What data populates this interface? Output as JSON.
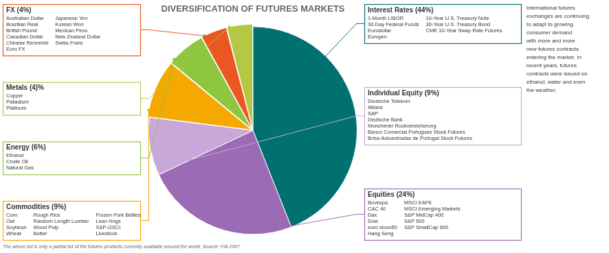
{
  "chart_data": {
    "type": "pie",
    "title": "DIVERSIFICATION OF FUTURES MARKETS",
    "values": [
      44,
      24,
      9,
      9,
      6,
      4,
      4
    ],
    "colors": [
      "#007070",
      "#9B6BB5",
      "#C8A8D8",
      "#F5A800",
      "#8DC63F",
      "#E85820",
      "#B5C845"
    ],
    "annotations": [
      {
        "text": "FX (4%)",
        "color": "#E85820",
        "columns": [
          [
            "Australian Dollar",
            "Brazilian Real",
            "British Pound",
            "Canadian Dollar",
            "Chinese Renminbi",
            "Euro FX"
          ],
          [
            "Japanese Yen",
            "Korean Won",
            "Mexican Peso",
            "New Zealand Dollar",
            "Swiss Franc"
          ]
        ]
      },
      {
        "text": "Metals (4)%",
        "color": "#B5C845",
        "columns": [
          [
            "Copper",
            "Palladium",
            "Platinum"
          ]
        ]
      },
      {
        "text": "Energy (6%)",
        "color": "#8DC63F",
        "columns": [
          [
            "Ethanol",
            "Crude Oil",
            "Natural Gas"
          ]
        ]
      },
      {
        "text": "Commodities (9%)",
        "color": "#F5A800",
        "columns": [
          [
            "Corn",
            "Oat",
            "Soybean",
            "Wheat"
          ],
          [
            "Rough Rice",
            "Random Length Lumber",
            "Wood Pulp",
            "Butter"
          ],
          [
            "Frozen Pork Bellies",
            "Lean Hogs",
            "S&P-GSCI",
            "Livestock"
          ]
        ]
      },
      {
        "text": "Interest Rates (44%)",
        "color": "#007070",
        "columns": [
          [
            "1-Month LIBOR",
            "30-Day Federal Funds",
            "Eurodollar",
            "Euroyen"
          ],
          [
            "10-Year U.S. Treasury Note",
            "30-Year U.S. Treasury Bond",
            "CME 10-Year Swap Rate Futures"
          ]
        ]
      },
      {
        "text": "Individual Equity (9%)",
        "color": "#C8A8D8",
        "columns": [
          [
            "Deutsche Telekom",
            "Allianz",
            "SAP",
            "Deutsche Bank",
            "Munchener Ruckversicherung",
            "Banco Comercial Portugues Stock Futures",
            "Brisa Autoestradas de Portugal Stock Futures"
          ]
        ]
      },
      {
        "text": "Equities (24%)",
        "color": "#9B6BB5",
        "columns": [
          [
            "Bovespa",
            "CAC 40",
            "Dax",
            "Dow",
            "euro stoxx50",
            "Hang Seng"
          ],
          [
            "MSCI EAFE",
            "MSCI Emerging Markets",
            "S&P MidCap 400",
            "S&P 500",
            "S&P SmallCap 600"
          ]
        ]
      },
      {
        "text": "International futures\nexchanges are continuing\nto adapt to growing\nconsumer demand\nwith more and more\nnew futures contracts\nentering the market. In\nrecent years, futures\ncontracts were issued on\nethanol, water and even\nthe weather."
      },
      {
        "text": "The above list is only a partial list of the futures products currently available around the world. Source: FIA 2007"
      }
    ]
  }
}
